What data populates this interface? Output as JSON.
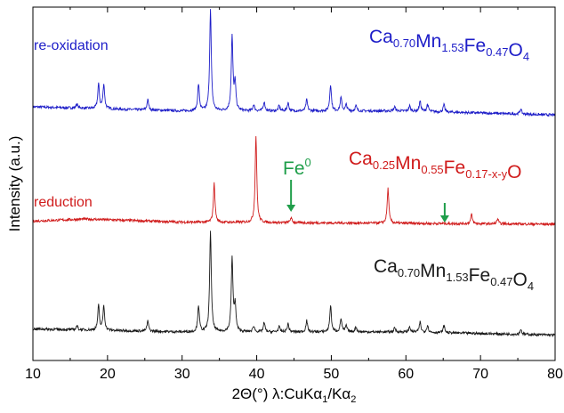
{
  "chart_data": {
    "type": "line",
    "xlabel_parts": [
      "2Θ(°)  λ:CuKα",
      "1",
      "/Kα",
      "2"
    ],
    "ylabel": "Intensity (a.u.)",
    "xlim": [
      10,
      80
    ],
    "xticks": [
      10,
      20,
      30,
      40,
      50,
      60,
      70,
      80
    ],
    "y_ticks_labeled": false,
    "grid": false,
    "series": [
      {
        "label": "re-oxidation",
        "formula": [
          [
            "Ca",
            "0.70"
          ],
          [
            "Mn",
            "1.53"
          ],
          [
            "Fe",
            "0.47"
          ],
          [
            "O",
            "4"
          ]
        ],
        "color": "#1d1dc8",
        "baseline": [
          [
            10,
            0.13
          ],
          [
            30,
            0.09
          ],
          [
            60,
            0.09
          ],
          [
            80,
            0.05
          ]
        ],
        "peaks": [
          [
            15.9,
            0.04
          ],
          [
            18.8,
            0.24
          ],
          [
            19.5,
            0.24
          ],
          [
            25.4,
            0.1
          ],
          [
            32.2,
            0.26
          ],
          [
            33.8,
            0.99
          ],
          [
            36.7,
            0.72
          ],
          [
            37.1,
            0.26
          ],
          [
            39.6,
            0.06
          ],
          [
            41.0,
            0.09
          ],
          [
            43.0,
            0.05
          ],
          [
            44.2,
            0.08
          ],
          [
            46.7,
            0.11
          ],
          [
            49.9,
            0.26
          ],
          [
            51.3,
            0.13
          ],
          [
            52.0,
            0.06
          ],
          [
            53.3,
            0.05
          ],
          [
            58.5,
            0.04
          ],
          [
            60.5,
            0.05
          ],
          [
            61.9,
            0.1
          ],
          [
            62.9,
            0.07
          ],
          [
            65.1,
            0.07
          ],
          [
            75.4,
            0.05
          ]
        ]
      },
      {
        "label": "reduction",
        "formula": [
          [
            "Ca",
            "0.25"
          ],
          [
            "Mn",
            "0.55"
          ],
          [
            "Fe",
            "0.17-x-y"
          ],
          [
            "O",
            ""
          ]
        ],
        "color": "#d01b1b",
        "annotation": {
          "text": "Fe",
          "sup": "0",
          "x": [
            44.6,
            65.2
          ]
        },
        "baseline": [
          [
            10,
            0.04
          ],
          [
            17,
            0.06
          ],
          [
            30,
            0.03
          ],
          [
            80,
            0.01
          ]
        ],
        "peaks": [
          [
            34.3,
            0.38
          ],
          [
            39.9,
            0.85
          ],
          [
            44.6,
            0.05
          ],
          [
            57.6,
            0.34
          ],
          [
            68.8,
            0.09
          ],
          [
            72.3,
            0.05
          ]
        ]
      },
      {
        "label": "",
        "formula": [
          [
            "Ca",
            "0.70"
          ],
          [
            "Mn",
            "1.53"
          ],
          [
            "Fe",
            "0.47"
          ],
          [
            "O",
            "4"
          ]
        ],
        "color": "#1a1a1a",
        "baseline": [
          [
            10,
            0.1
          ],
          [
            30,
            0.07
          ],
          [
            60,
            0.07
          ],
          [
            80,
            0.04
          ]
        ],
        "peaks": [
          [
            15.9,
            0.04
          ],
          [
            18.8,
            0.24
          ],
          [
            19.5,
            0.24
          ],
          [
            25.4,
            0.1
          ],
          [
            32.2,
            0.26
          ],
          [
            33.8,
            0.99
          ],
          [
            36.7,
            0.72
          ],
          [
            37.1,
            0.26
          ],
          [
            39.6,
            0.06
          ],
          [
            41.0,
            0.09
          ],
          [
            43.0,
            0.05
          ],
          [
            44.2,
            0.08
          ],
          [
            46.7,
            0.11
          ],
          [
            49.9,
            0.26
          ],
          [
            51.3,
            0.13
          ],
          [
            52.0,
            0.06
          ],
          [
            53.3,
            0.05
          ],
          [
            58.5,
            0.04
          ],
          [
            60.5,
            0.05
          ],
          [
            61.9,
            0.1
          ],
          [
            62.9,
            0.07
          ],
          [
            65.1,
            0.07
          ],
          [
            75.4,
            0.05
          ]
        ]
      }
    ]
  }
}
